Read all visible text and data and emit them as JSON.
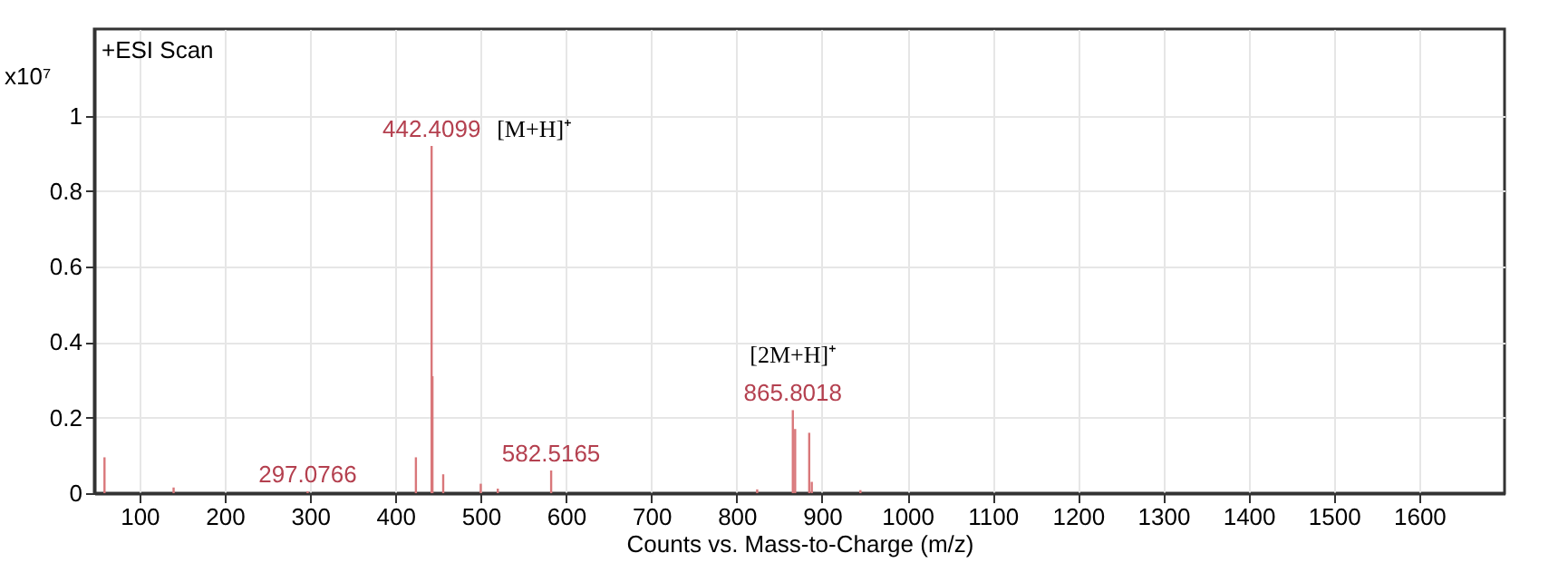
{
  "chart_data": {
    "type": "bar",
    "xlabel": "Counts vs. Mass-to-Charge (m/z)",
    "ylabel": "x10⁷",
    "x": [
      59,
      140,
      297.0766,
      424,
      442.4099,
      443.4,
      456,
      500,
      520,
      582.5165,
      824,
      865.8018,
      868.5,
      885,
      888,
      945
    ],
    "values": [
      0.095,
      0.015,
      0.005,
      0.095,
      0.92,
      0.31,
      0.05,
      0.025,
      0.012,
      0.06,
      0.01,
      0.22,
      0.17,
      0.16,
      0.03,
      0.008
    ],
    "color": "#d9777a",
    "xlim": [
      47,
      1700
    ],
    "ylim": [
      0,
      1.23
    ],
    "xticks": [
      100,
      200,
      300,
      400,
      500,
      600,
      700,
      800,
      900,
      1000,
      1100,
      1200,
      1300,
      1400,
      1500,
      1600
    ],
    "yticks": [
      0,
      0.2,
      0.4,
      0.6,
      0.8,
      1
    ],
    "grid": true,
    "annotations": [
      "+ESI Scan",
      {
        "text": "297.0766",
        "x": 297.0766,
        "y": 0.005
      },
      {
        "text": "442.4099",
        "x": 442.4099,
        "y": 0.92
      },
      {
        "text": "[M+H]⁺",
        "x": 442.4099,
        "y": 0.92
      },
      {
        "text": "582.5165",
        "x": 582.5165,
        "y": 0.06
      },
      {
        "text": "865.8018",
        "x": 865.8018,
        "y": 0.22
      },
      {
        "text": "[2M+H]⁺",
        "x": 865.8018,
        "y": 0.22
      }
    ]
  }
}
